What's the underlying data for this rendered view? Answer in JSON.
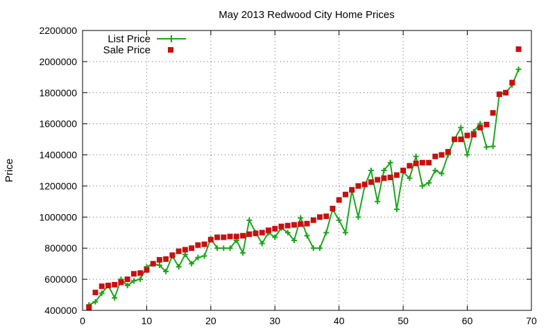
{
  "chart_data": {
    "type": "line",
    "title": "May 2013 Redwood City Home Prices",
    "xlabel": "",
    "ylabel": "Price",
    "xlim": [
      0,
      70
    ],
    "ylim": [
      400000,
      2200000
    ],
    "xticks": [
      0,
      10,
      20,
      30,
      40,
      50,
      60,
      70
    ],
    "yticks": [
      400000,
      600000,
      800000,
      1000000,
      1200000,
      1400000,
      1600000,
      1800000,
      2000000,
      2200000
    ],
    "xtick_labels": [
      "0",
      "10",
      "20",
      "30",
      "40",
      "50",
      "60",
      "70"
    ],
    "ytick_labels": [
      "400000",
      "600000",
      "800000",
      "1000000",
      "1200000",
      "1400000",
      "1600000",
      "1800000",
      "2000000",
      "2200000"
    ],
    "grid": true,
    "legend_position": "top-left",
    "x": [
      1,
      2,
      3,
      4,
      5,
      6,
      7,
      8,
      9,
      10,
      11,
      12,
      13,
      14,
      15,
      16,
      17,
      18,
      19,
      20,
      21,
      22,
      23,
      24,
      25,
      26,
      27,
      28,
      29,
      30,
      31,
      32,
      33,
      34,
      35,
      36,
      37,
      38,
      39,
      40,
      41,
      42,
      43,
      44,
      45,
      46,
      47,
      48,
      49,
      50,
      51,
      52,
      53,
      54,
      55,
      56,
      57,
      58,
      59,
      60,
      61,
      62,
      63,
      64,
      65,
      66,
      67,
      68
    ],
    "series": [
      {
        "name": "List Price",
        "style": "line-with-plus-markers",
        "color": "#1aa51a",
        "values": [
          435000,
          455000,
          510000,
          560000,
          480000,
          600000,
          560000,
          590000,
          600000,
          680000,
          700000,
          690000,
          650000,
          750000,
          680000,
          760000,
          700000,
          740000,
          750000,
          860000,
          800000,
          800000,
          800000,
          850000,
          770000,
          980000,
          900000,
          830000,
          900000,
          870000,
          930000,
          900000,
          850000,
          995000,
          880000,
          800000,
          800000,
          900000,
          1050000,
          980000,
          900000,
          1170000,
          1000000,
          1200000,
          1300000,
          1100000,
          1300000,
          1350000,
          1050000,
          1290000,
          1250000,
          1390000,
          1200000,
          1220000,
          1300000,
          1280000,
          1400000,
          1500000,
          1575000,
          1400000,
          1550000,
          1600000,
          1450000,
          1455000,
          1790000,
          1800000,
          1850000,
          1950000
        ]
      },
      {
        "name": "Sale Price",
        "style": "square-markers",
        "color": "#c81010",
        "values": [
          420000,
          515000,
          555000,
          560000,
          565000,
          580000,
          600000,
          635000,
          640000,
          660000,
          700000,
          725000,
          730000,
          755000,
          780000,
          790000,
          800000,
          820000,
          825000,
          855000,
          870000,
          870000,
          875000,
          875000,
          880000,
          890000,
          895000,
          900000,
          915000,
          925000,
          940000,
          945000,
          950000,
          955000,
          958000,
          980000,
          1000000,
          1005000,
          1055000,
          1110000,
          1145000,
          1175000,
          1200000,
          1210000,
          1225000,
          1240000,
          1250000,
          1255000,
          1270000,
          1300000,
          1330000,
          1345000,
          1350000,
          1350000,
          1390000,
          1400000,
          1420000,
          1500000,
          1500000,
          1525000,
          1530000,
          1575000,
          1595000,
          1670000,
          1790000,
          1800000,
          1865000,
          2080000
        ]
      }
    ]
  }
}
